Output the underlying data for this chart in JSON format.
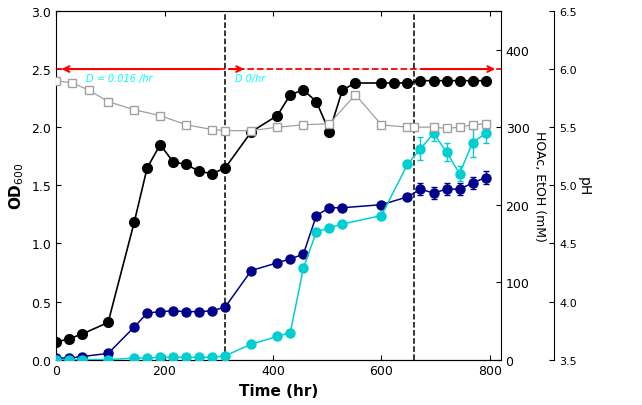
{
  "time_OD": [
    0,
    24,
    48,
    96,
    144,
    168,
    192,
    216,
    240,
    264,
    288,
    312,
    360,
    408,
    432,
    456,
    480,
    504,
    528,
    552,
    600,
    624,
    648,
    672,
    696,
    720,
    744,
    768,
    792
  ],
  "OD": [
    0.15,
    0.18,
    0.22,
    0.32,
    1.18,
    1.65,
    1.85,
    1.7,
    1.68,
    1.62,
    1.6,
    1.65,
    1.96,
    2.1,
    2.28,
    2.32,
    2.22,
    1.96,
    2.32,
    2.38,
    2.38,
    2.38,
    2.38,
    2.4,
    2.4,
    2.4,
    2.4,
    2.4,
    2.4
  ],
  "time_HOAc": [
    0,
    24,
    48,
    96,
    144,
    168,
    192,
    216,
    240,
    264,
    288,
    312,
    360,
    408,
    432,
    456,
    480,
    504,
    528,
    600,
    648,
    672,
    696,
    720,
    744,
    768,
    792
  ],
  "HOAc": [
    2,
    2,
    4,
    8,
    42,
    60,
    62,
    63,
    62,
    62,
    63,
    68,
    115,
    125,
    130,
    136,
    186,
    196,
    196,
    200,
    210,
    220,
    215,
    220,
    220,
    228,
    235
  ],
  "time_EtOH": [
    0,
    24,
    48,
    96,
    144,
    168,
    192,
    216,
    240,
    264,
    288,
    312,
    360,
    408,
    432,
    456,
    480,
    504,
    528,
    600,
    648,
    672,
    696,
    720,
    744,
    768,
    792
  ],
  "EtOH": [
    0,
    0,
    0,
    0,
    2,
    2,
    3,
    3,
    3,
    3,
    3,
    5,
    20,
    30,
    35,
    118,
    165,
    170,
    175,
    186,
    252,
    272,
    292,
    268,
    240,
    280,
    292
  ],
  "EtOH_err_times": [
    672,
    696,
    720,
    744,
    768,
    792
  ],
  "EtOH_err": [
    15,
    10,
    12,
    10,
    18,
    12
  ],
  "HOAc_err_times": [
    672,
    696,
    720,
    744,
    768,
    792
  ],
  "HOAc_err": [
    8,
    8,
    8,
    8,
    8,
    8
  ],
  "time_pH": [
    0,
    30,
    60,
    96,
    144,
    192,
    240,
    288,
    312,
    360,
    408,
    456,
    504,
    552,
    600,
    648,
    660,
    696,
    720,
    744,
    768,
    792
  ],
  "pH": [
    5.9,
    5.88,
    5.82,
    5.72,
    5.65,
    5.6,
    5.52,
    5.48,
    5.47,
    5.47,
    5.5,
    5.52,
    5.53,
    5.78,
    5.52,
    5.5,
    5.5,
    5.5,
    5.49,
    5.5,
    5.52,
    5.53
  ],
  "vline1": 312,
  "vline2": 660,
  "red_dashed_y": 2.5,
  "xlabel": "Time (hr)",
  "ylabel_left": "OD$_{600}$",
  "ylabel_right1": "HOAc, EtOH (mM)",
  "ylabel_right2": "pH",
  "ylim_left": [
    0,
    3.0
  ],
  "ylim_right": [
    0,
    450
  ],
  "pH_min": 3.5,
  "pH_max": 6.5,
  "xlim": [
    0,
    820
  ],
  "label_D1": "D = 0.016 /hr",
  "label_D2": "D 0/hr",
  "color_OD": "#000000",
  "color_HOAc": "#00008B",
  "color_EtOH": "#00CED1",
  "color_pH": "#A0A0A0",
  "mM_ticks": [
    0,
    100,
    200,
    300,
    400
  ],
  "pH_ticks": [
    3.5,
    4.0,
    4.5,
    5.0,
    5.5,
    6.0,
    6.5
  ],
  "OD_ticks": [
    0.0,
    0.5,
    1.0,
    1.5,
    2.0,
    2.5,
    3.0
  ],
  "x_ticks": [
    0,
    200,
    400,
    600,
    800
  ]
}
